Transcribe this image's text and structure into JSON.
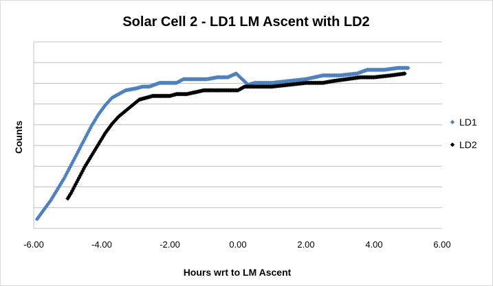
{
  "chart_data": {
    "type": "scatter",
    "title": "Solar Cell 2 - LD1 LM Ascent with LD2",
    "xlabel": "Hours wrt to LM Ascent",
    "ylabel": "Counts",
    "xlim": [
      -6.0,
      6.0
    ],
    "xticks": [
      "-6.00",
      "-4.00",
      "-2.00",
      "0.00",
      "2.00",
      "4.00",
      "6.00"
    ],
    "y_gridlines": 9,
    "y_tick_labels_shown": false,
    "grid": true,
    "legend_position": "right",
    "series": [
      {
        "name": "LD1",
        "color": "#4f81bd",
        "marker": "diamond",
        "x": [
          -5.9,
          -5.7,
          -5.5,
          -5.3,
          -5.1,
          -4.9,
          -4.7,
          -4.5,
          -4.3,
          -4.1,
          -3.9,
          -3.7,
          -3.5,
          -3.3,
          -3.0,
          -2.8,
          -2.6,
          -2.3,
          -2.0,
          -1.8,
          -1.6,
          -1.2,
          -0.9,
          -0.6,
          -0.3,
          -0.05,
          0.3,
          0.5,
          1.0,
          1.5,
          2.0,
          2.5,
          3.0,
          3.5,
          3.8,
          4.3,
          4.7,
          5.0
        ],
        "y": [
          0.05,
          0.1,
          0.15,
          0.21,
          0.27,
          0.34,
          0.41,
          0.48,
          0.55,
          0.61,
          0.66,
          0.7,
          0.72,
          0.74,
          0.75,
          0.76,
          0.76,
          0.78,
          0.78,
          0.78,
          0.8,
          0.8,
          0.8,
          0.81,
          0.81,
          0.83,
          0.77,
          0.78,
          0.78,
          0.79,
          0.8,
          0.82,
          0.82,
          0.83,
          0.85,
          0.85,
          0.86,
          0.86
        ]
      },
      {
        "name": "LD2",
        "color": "#000000",
        "marker": "diamond",
        "x": [
          -5.0,
          -4.9,
          -4.7,
          -4.5,
          -4.3,
          -4.1,
          -3.9,
          -3.7,
          -3.5,
          -3.3,
          -3.1,
          -2.9,
          -2.5,
          -2.0,
          -1.8,
          -1.5,
          -1.0,
          -0.5,
          0.0,
          0.2,
          0.5,
          1.0,
          1.5,
          2.0,
          2.5,
          2.8,
          3.2,
          3.6,
          4.0,
          4.5,
          4.9
        ],
        "y": [
          0.16,
          0.19,
          0.26,
          0.33,
          0.39,
          0.45,
          0.51,
          0.56,
          0.6,
          0.63,
          0.66,
          0.69,
          0.71,
          0.71,
          0.72,
          0.72,
          0.74,
          0.74,
          0.74,
          0.76,
          0.76,
          0.76,
          0.77,
          0.78,
          0.78,
          0.79,
          0.8,
          0.81,
          0.81,
          0.82,
          0.83
        ]
      }
    ]
  }
}
